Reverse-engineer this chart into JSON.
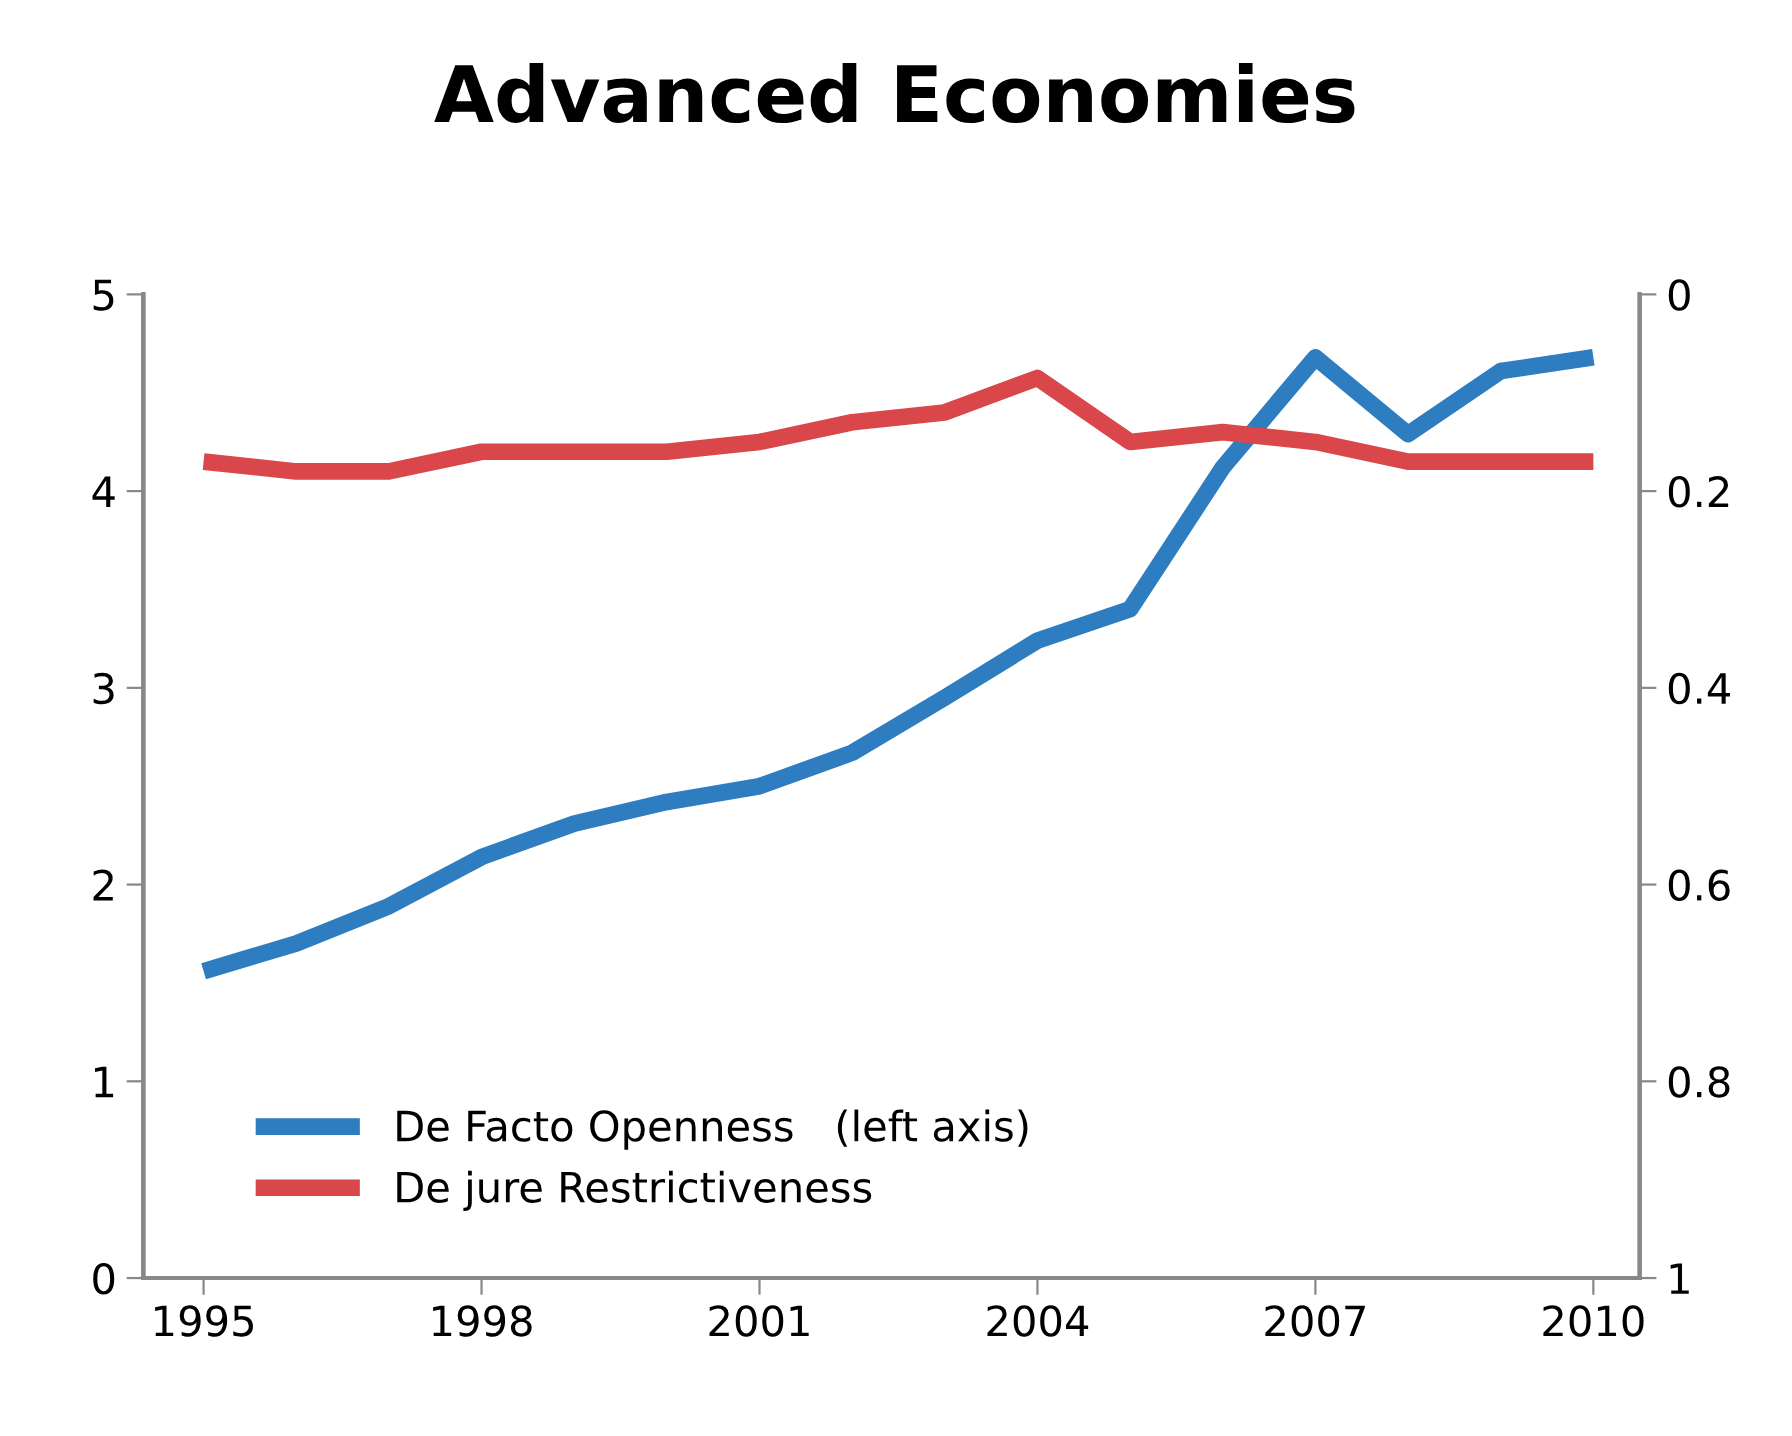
{
  "chart_data": {
    "type": "line",
    "title": "Advanced Economies",
    "x": [
      1995,
      1996,
      1997,
      1998,
      1999,
      2000,
      2001,
      2002,
      2003,
      2004,
      2005,
      2006,
      2007,
      2008,
      2009,
      2010
    ],
    "series": [
      {
        "name": "De Facto Openness   (left axis)",
        "color": "#2e7dc0",
        "values": [
          1.56,
          1.7,
          1.89,
          2.14,
          2.31,
          2.42,
          2.5,
          2.67,
          2.95,
          3.24,
          3.4,
          4.12,
          4.68,
          4.29,
          4.61,
          4.68
        ]
      },
      {
        "name": "De jure Restrictiveness",
        "color": "#d9474a",
        "axis": "y2",
        "values": [
          0.17,
          0.18,
          0.18,
          0.16,
          0.16,
          0.16,
          0.15,
          0.13,
          0.12,
          0.085,
          0.15,
          0.14,
          0.15,
          0.17,
          0.17,
          0.17
        ]
      }
    ],
    "xlim": [
      1994.35,
      2010.5
    ],
    "xticks": [
      1995,
      1998,
      2001,
      2004,
      2007,
      2010
    ],
    "ylim": [
      0,
      5
    ],
    "yticks": [
      0,
      1,
      2,
      3,
      4,
      5
    ],
    "y2lim": [
      1,
      0
    ],
    "y2ticks": [
      {
        "value": 1,
        "label": "1"
      },
      0.8,
      0.6,
      0.4,
      0.2,
      {
        "value": 0,
        "label": "0"
      }
    ],
    "legend": "bottom left",
    "grid": false,
    "marker": "none",
    "line_style": "solid"
  }
}
